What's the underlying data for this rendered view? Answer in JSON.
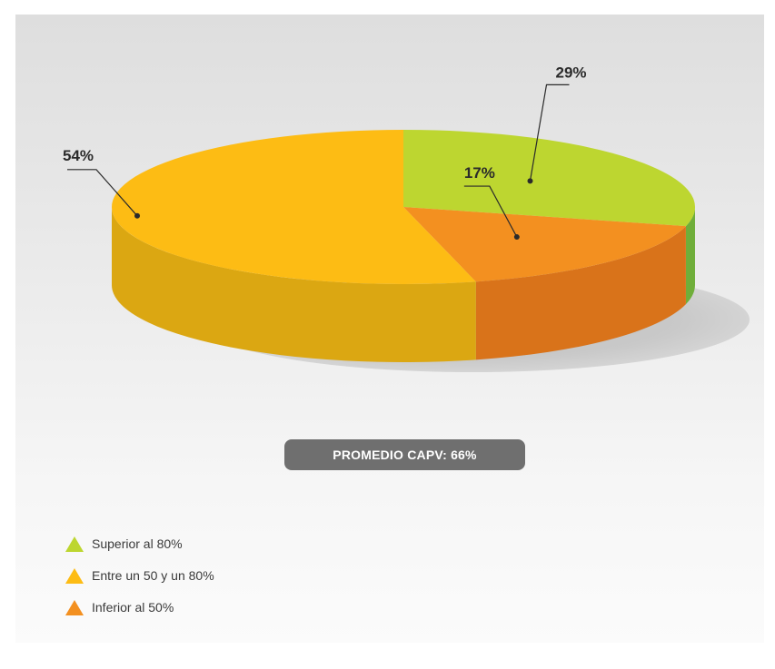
{
  "chart_data": {
    "type": "pie",
    "title": "",
    "summary_label": "PROMEDIO CAPV: 66%",
    "slices": [
      {
        "label": "Superior al 80%",
        "value": 29,
        "value_label": "29%",
        "color": "#bdd630",
        "side_color": "#6fae3a"
      },
      {
        "label": "Inferior al 50%",
        "value": 17,
        "value_label": "17%",
        "color": "#f39020",
        "side_color": "#d9731a"
      },
      {
        "label": "Entre un 50 y un 80%",
        "value": 54,
        "value_label": "54%",
        "color": "#fdbc14",
        "side_color": "#dba712"
      }
    ],
    "legend_position": "bottom-left"
  },
  "legend": {
    "items": [
      {
        "label": "Superior al 80%",
        "color": "#bdd630"
      },
      {
        "label": "Entre un 50 y un 80%",
        "color": "#fdbc14"
      },
      {
        "label": "Inferior al 50%",
        "color": "#f39020"
      }
    ]
  }
}
